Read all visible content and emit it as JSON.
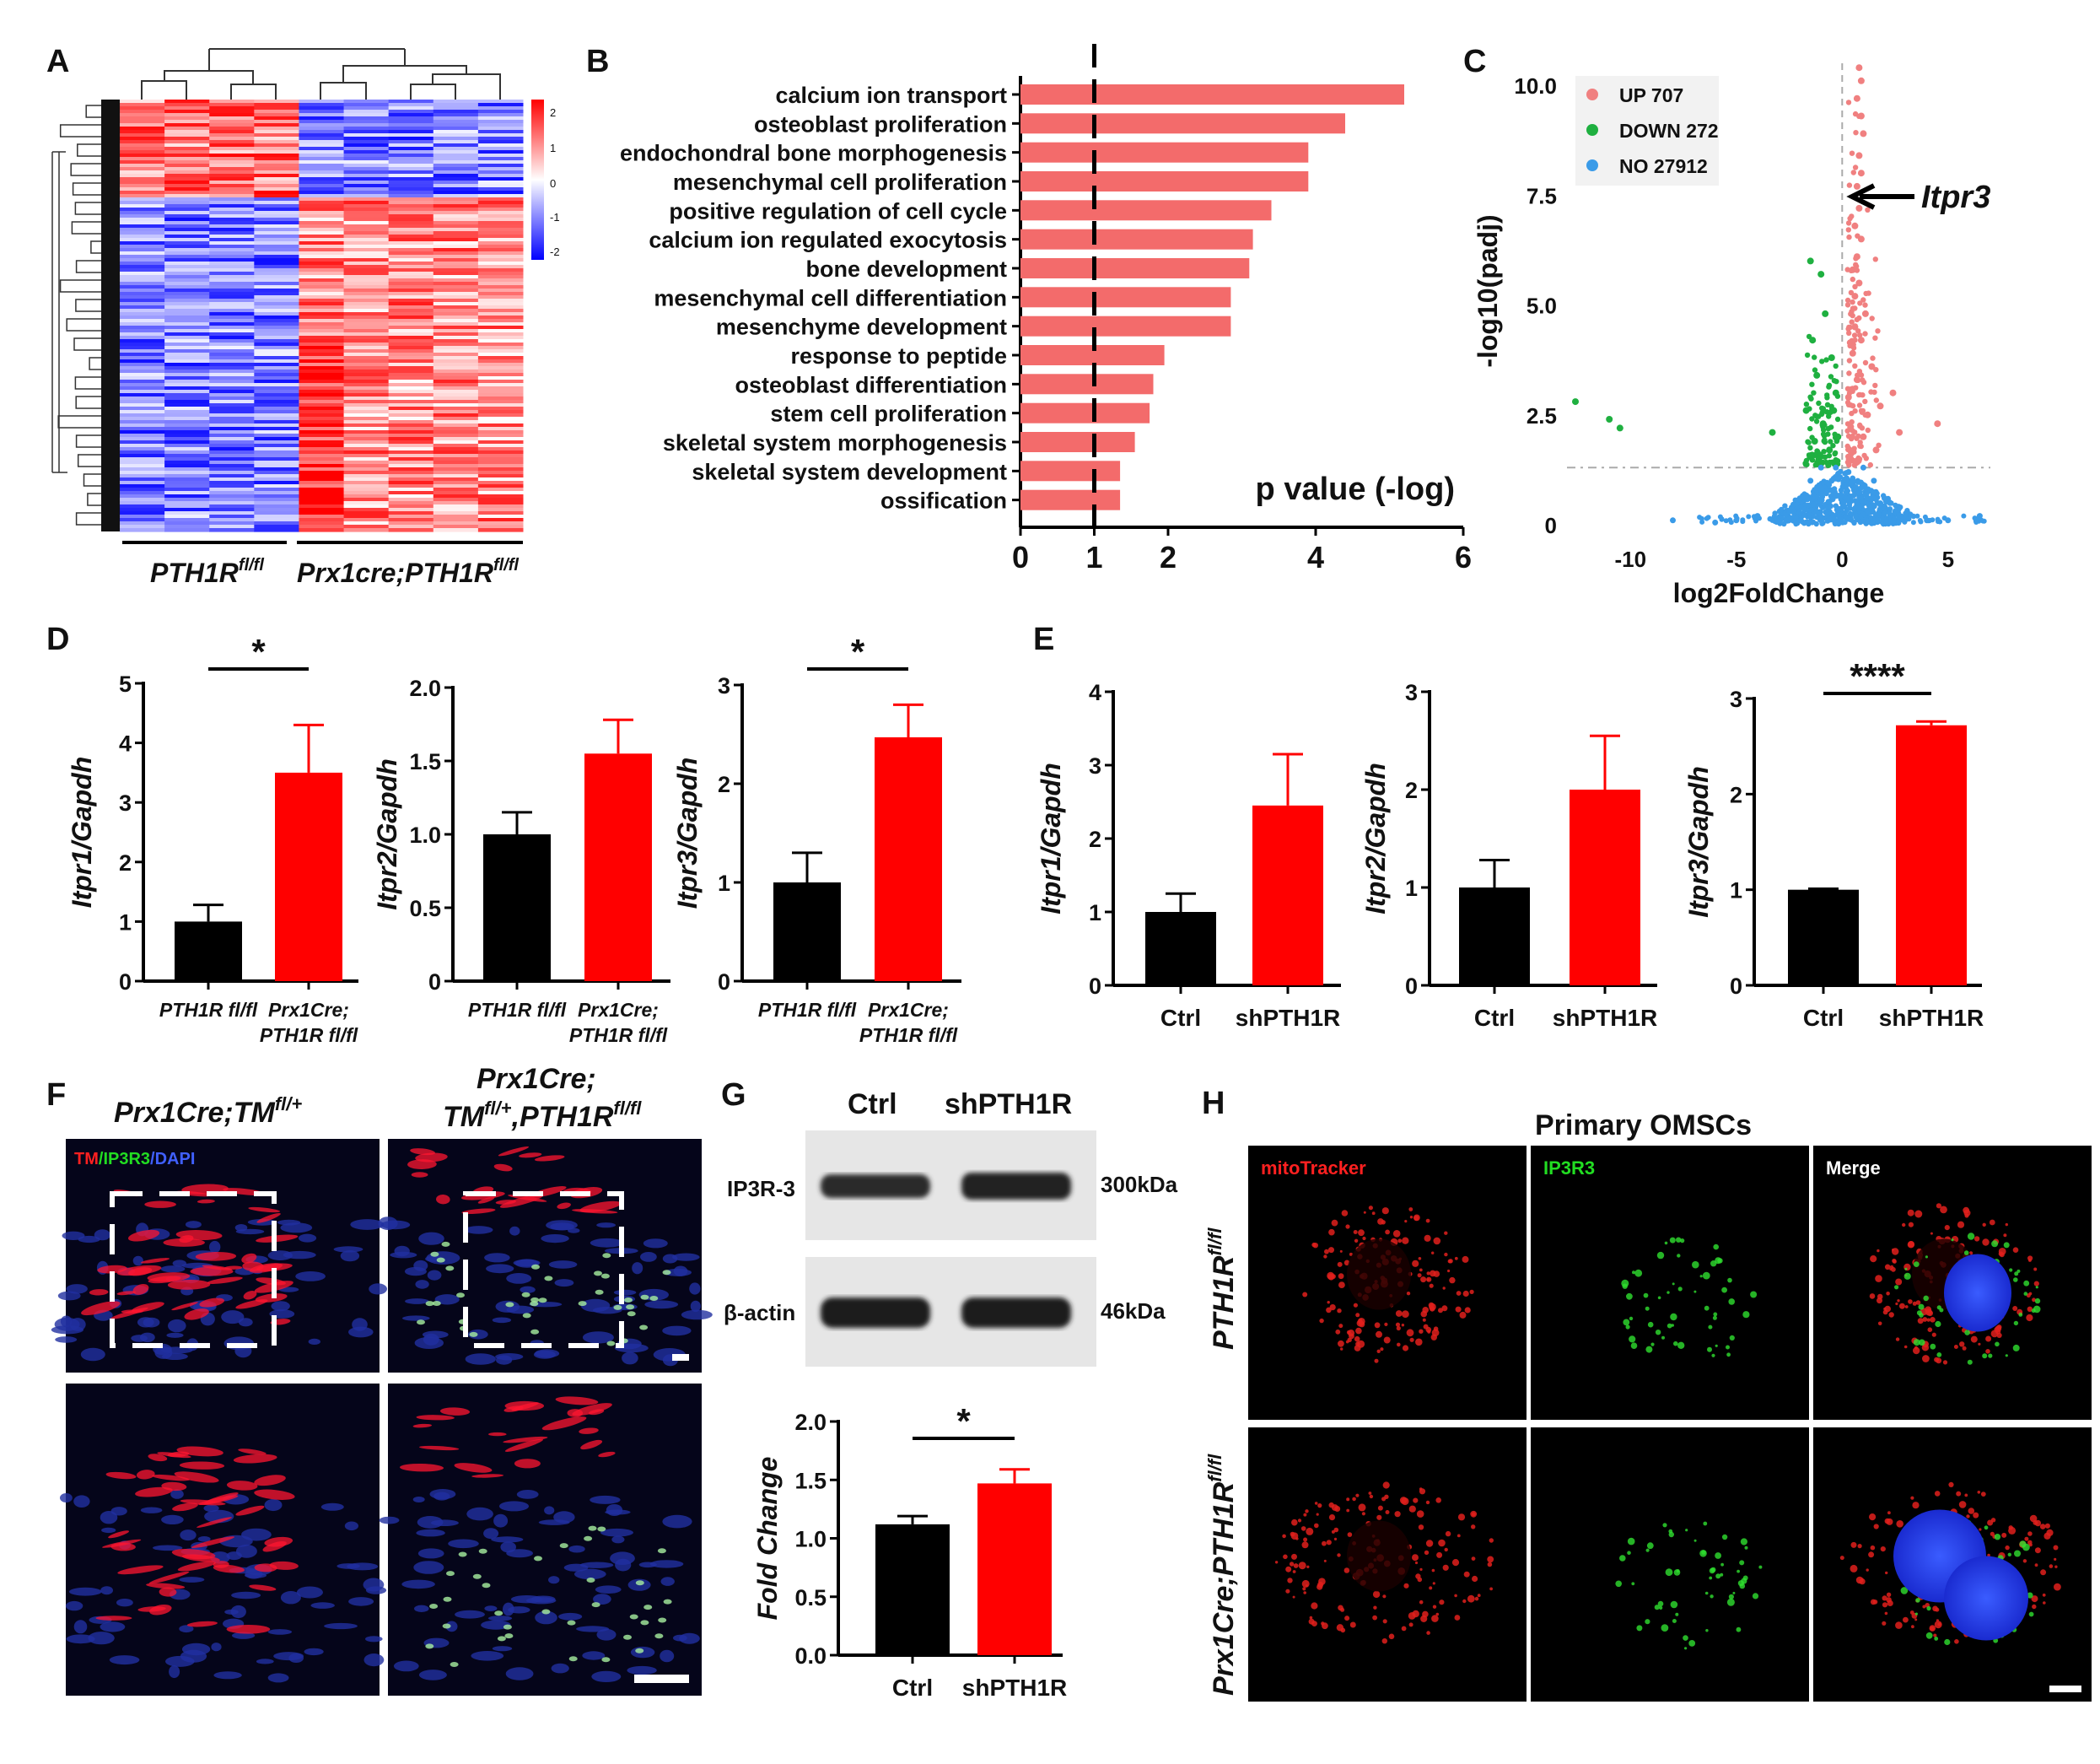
{
  "panel_labels": [
    "A",
    "B",
    "C",
    "D",
    "E",
    "F",
    "G",
    "H"
  ],
  "colors": {
    "red": "#ff0000",
    "black": "#000000",
    "bar_red": "#f36b6b",
    "up": "#f08080",
    "down": "#1fb040",
    "no": "#3a9be8"
  },
  "panelA": {
    "colorbar_ticks": [
      "2",
      "1",
      "0",
      "-1",
      "-2"
    ],
    "group1": "PTH1R",
    "group1_sup": "fl/fl",
    "group2": "Prx1cre;PTH1R",
    "group2_sup": "fl/fl"
  },
  "chart_data": [
    {
      "id": "B",
      "type": "bar",
      "orientation": "horizontal",
      "title": "",
      "xlabel": "p value (-log)",
      "xlim": [
        0,
        6
      ],
      "x_ticks": [
        "0",
        "1",
        "2",
        "4",
        "6"
      ],
      "threshold": 1,
      "categories": [
        "calcium ion transport",
        "osteoblast proliferation",
        "endochondral bone morphogenesis",
        "mesenchymal cell proliferation",
        "positive regulation of cell cycle",
        "calcium ion regulated exocytosis",
        "bone development",
        "mesenchymal cell differentiation",
        "mesenchyme development",
        "response to peptide",
        "osteoblast differentiation",
        "stem cell proliferation",
        "skeletal system morphogenesis",
        "skeletal system development",
        "ossification"
      ],
      "values": [
        5.2,
        4.4,
        3.9,
        3.9,
        3.4,
        3.15,
        3.1,
        2.85,
        2.85,
        1.95,
        1.8,
        1.75,
        1.55,
        1.35,
        1.35
      ]
    },
    {
      "id": "C",
      "type": "scatter",
      "title": "",
      "xlabel": "log2FoldChange",
      "ylabel": "-log10(padj)",
      "x_ticks": [
        "-10",
        "-5",
        "0",
        "5"
      ],
      "y_ticks": [
        "0",
        "2.5",
        "5.0",
        "7.5",
        "10.0"
      ],
      "xlim": [
        -13,
        7
      ],
      "ylim": [
        0,
        10.5
      ],
      "legend": [
        "UP 707",
        "DOWN 272",
        "NO 27912"
      ],
      "annotation": "Itpr3",
      "up_points": [
        [
          0.8,
          10.4
        ],
        [
          0.9,
          10.1
        ],
        [
          0.7,
          9.7
        ],
        [
          0.9,
          9.3
        ],
        [
          1.0,
          8.9
        ],
        [
          0.8,
          8.4
        ],
        [
          0.9,
          8.0
        ],
        [
          0.7,
          7.7
        ],
        [
          0.8,
          7.2
        ],
        [
          0.6,
          6.8
        ],
        [
          0.9,
          6.5
        ],
        [
          0.7,
          6.1
        ],
        [
          0.5,
          5.8
        ],
        [
          0.8,
          5.5
        ],
        [
          0.6,
          5.2
        ],
        [
          1.1,
          4.8
        ],
        [
          0.6,
          4.5
        ],
        [
          0.9,
          4.2
        ],
        [
          0.5,
          3.9
        ],
        [
          1.4,
          3.6
        ],
        [
          0.7,
          3.3
        ],
        [
          2.4,
          3.0
        ],
        [
          1.8,
          2.7
        ],
        [
          4.5,
          2.3
        ],
        [
          1.0,
          2.0
        ],
        [
          1.6,
          1.7
        ],
        [
          0.4,
          1.5
        ],
        [
          2.7,
          2.1
        ],
        [
          1.2,
          2.5
        ],
        [
          0.3,
          2.9
        ]
      ],
      "down_points": [
        [
          -1.5,
          6.0
        ],
        [
          -1.0,
          5.7
        ],
        [
          -0.8,
          4.8
        ],
        [
          -1.4,
          4.2
        ],
        [
          -0.5,
          3.8
        ],
        [
          -1.2,
          3.4
        ],
        [
          -0.3,
          3.0
        ],
        [
          -1.7,
          2.6
        ],
        [
          -0.9,
          2.3
        ],
        [
          -0.2,
          2.0
        ],
        [
          -0.6,
          1.7
        ],
        [
          -1.1,
          1.5
        ],
        [
          -3.3,
          2.1
        ],
        [
          -10.5,
          2.2
        ],
        [
          -11.0,
          2.4
        ],
        [
          -12.6,
          2.8
        ],
        [
          -0.4,
          2.6
        ],
        [
          -1.3,
          1.9
        ]
      ],
      "no_points": [
        [
          -8.0,
          0.1
        ],
        [
          -5.0,
          0.1
        ],
        [
          -4.0,
          0.2
        ],
        [
          -3.0,
          0.1
        ],
        [
          -2.5,
          0.3
        ],
        [
          -2.0,
          0.6
        ],
        [
          -1.5,
          1.0
        ],
        [
          -1.0,
          1.3
        ],
        [
          -0.5,
          1.0
        ],
        [
          0.0,
          0.5
        ],
        [
          0.5,
          1.0
        ],
        [
          1.0,
          1.3
        ],
        [
          1.5,
          1.0
        ],
        [
          2.0,
          0.6
        ],
        [
          2.5,
          0.3
        ],
        [
          3.0,
          0.15
        ],
        [
          4.0,
          0.1
        ],
        [
          5.0,
          0.1
        ],
        [
          6.5,
          0.2
        ],
        [
          -6.0,
          0.05
        ],
        [
          -1.2,
          0.3
        ],
        [
          0.8,
          0.4
        ],
        [
          -0.3,
          1.3
        ],
        [
          0.3,
          1.2
        ]
      ]
    },
    {
      "id": "D1",
      "type": "bar",
      "ylabel": "Itpr1/Gapdh",
      "ylim": [
        0,
        5
      ],
      "y_ticks": [
        "0",
        "1",
        "2",
        "3",
        "4",
        "5"
      ],
      "categories": [
        "PTH1R fl/fl",
        "Prx1Cre; PTH1R fl/fl"
      ],
      "values": [
        1.0,
        3.5
      ],
      "errors": [
        0.28,
        0.8
      ],
      "significance": "*"
    },
    {
      "id": "D2",
      "type": "bar",
      "ylabel": "Itpr2/Gapdh",
      "ylim": [
        0,
        2.0
      ],
      "y_ticks": [
        "0",
        "0.5",
        "1.0",
        "1.5",
        "2.0"
      ],
      "categories": [
        "PTH1R fl/fl",
        "Prx1Cre; PTH1R fl/fl"
      ],
      "values": [
        1.0,
        1.55
      ],
      "errors": [
        0.15,
        0.23
      ],
      "significance": ""
    },
    {
      "id": "D3",
      "type": "bar",
      "ylabel": "Itpr3/Gapdh",
      "ylim": [
        0,
        3
      ],
      "y_ticks": [
        "0",
        "1",
        "2",
        "3"
      ],
      "categories": [
        "PTH1R fl/fl",
        "Prx1Cre; PTH1R fl/fl"
      ],
      "values": [
        1.0,
        2.47
      ],
      "errors": [
        0.3,
        0.33
      ],
      "significance": "*"
    },
    {
      "id": "E1",
      "type": "bar",
      "ylabel": "Itpr1/Gapdh",
      "ylim": [
        0,
        4
      ],
      "y_ticks": [
        "0",
        "1",
        "2",
        "3",
        "4"
      ],
      "categories": [
        "Ctrl",
        "shPTH1R"
      ],
      "values": [
        1.0,
        2.45
      ],
      "errors": [
        0.25,
        0.7
      ],
      "significance": ""
    },
    {
      "id": "E2",
      "type": "bar",
      "ylabel": "Itpr2/Gapdh",
      "ylim": [
        0,
        3
      ],
      "y_ticks": [
        "0",
        "1",
        "2",
        "3"
      ],
      "categories": [
        "Ctrl",
        "shPTH1R"
      ],
      "values": [
        1.0,
        2.0
      ],
      "errors": [
        0.28,
        0.55
      ],
      "significance": ""
    },
    {
      "id": "E3",
      "type": "bar",
      "ylabel": "Itpr3/Gapdh",
      "ylim": [
        0,
        3
      ],
      "y_ticks": [
        "0",
        "1",
        "2",
        "3"
      ],
      "categories": [
        "Ctrl",
        "shPTH1R"
      ],
      "values": [
        1.0,
        2.72
      ],
      "errors": [
        0.01,
        0.04
      ],
      "significance": "****"
    },
    {
      "id": "G",
      "type": "bar",
      "ylabel": "Fold Change",
      "ylim": [
        0.0,
        2.0
      ],
      "y_ticks": [
        "0.0",
        "0.5",
        "1.0",
        "1.5",
        "2.0"
      ],
      "categories": [
        "Ctrl",
        "shPTH1R"
      ],
      "values": [
        1.12,
        1.47
      ],
      "errors": [
        0.07,
        0.12
      ],
      "significance": "*"
    }
  ],
  "panelF": {
    "title1": "Prx1Cre;TM",
    "title1_sup": "fl/+",
    "title2a": "Prx1Cre;",
    "title2b": "TM",
    "title2b_sup": "fl/+",
    "title2c": ",PTH1R",
    "title2c_sup": "fl/fl",
    "stain_tm": "TM",
    "stain_ip3r3": "/IP3R3",
    "stain_dapi": "/DAPI"
  },
  "panelG": {
    "lanes": [
      "Ctrl",
      "shPTH1R"
    ],
    "band1": "IP3R-3",
    "band1_size": "300kDa",
    "band2": "β-actin",
    "band2_size": "46kDa"
  },
  "panelH": {
    "title": "Primary OMSCs",
    "channels": [
      "mitoTracker",
      "IP3R3",
      "Merge"
    ],
    "row1": "PTH1R",
    "row1_sup": "fl/fl",
    "row2": "Prx1Cre;PTH1R",
    "row2_sup": "fl/fl"
  }
}
